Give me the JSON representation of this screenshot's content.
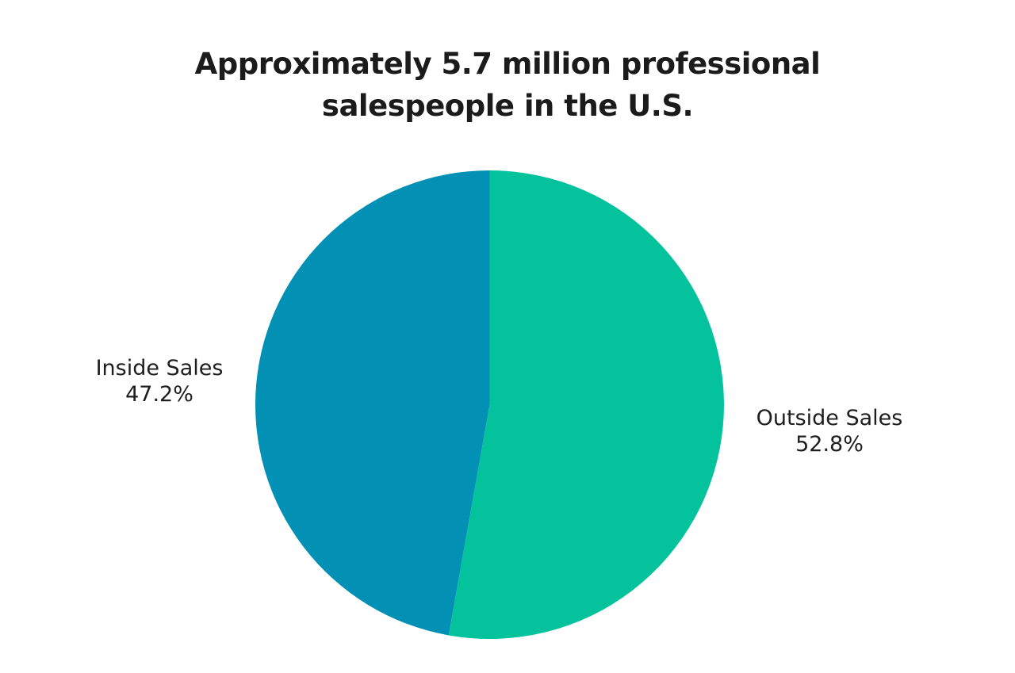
{
  "page": {
    "background_color": "#ffffff",
    "text_color": "#1e1e1e"
  },
  "chart_data": {
    "type": "pie",
    "title": "Approximately 5.7 million professional salespeople in the U.S.",
    "title_lines": [
      "Approximately 5.7 million professional",
      "salespeople in the U.S."
    ],
    "legend_position": "none",
    "labels_position": "outside",
    "start_angle_deg": 0,
    "direction": "clockwise",
    "grid": false,
    "slices": [
      {
        "label": "Outside Sales",
        "value": 52.8,
        "pct_label": "52.8%",
        "color": "#04c29b"
      },
      {
        "label": "Inside Sales",
        "value": 47.2,
        "pct_label": "47.2%",
        "color": "#0291b5"
      }
    ]
  }
}
